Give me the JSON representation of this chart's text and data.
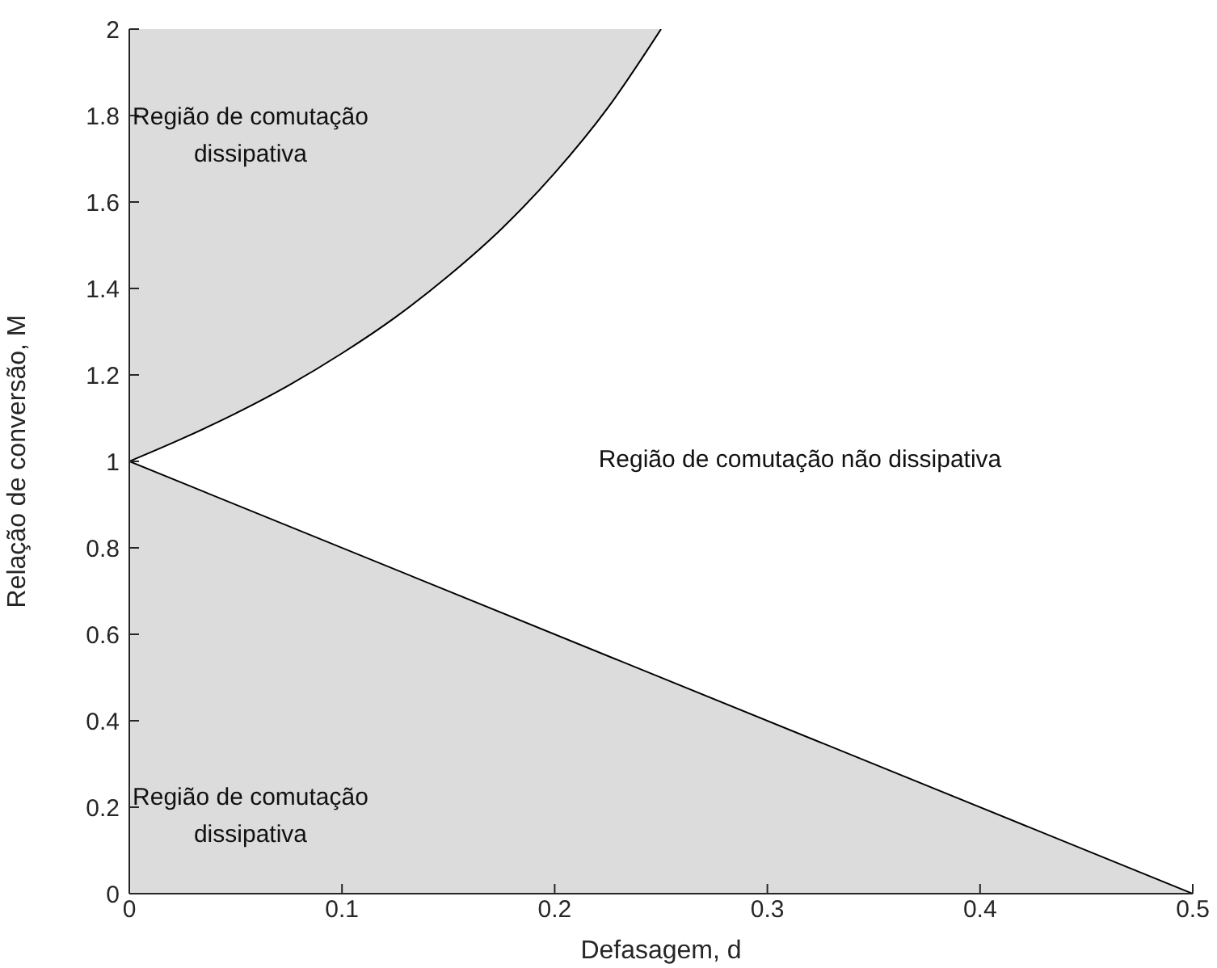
{
  "chart_data": {
    "type": "area",
    "xlabel": "Defasagem, d",
    "ylabel": "Relação de conversão, M",
    "xlim": [
      0,
      0.5
    ],
    "xticks": [
      0,
      0.1,
      0.2,
      0.3,
      0.4,
      0.5
    ],
    "ylim": [
      0,
      2
    ],
    "yticks": [
      0,
      0.2,
      0.4,
      0.6,
      0.8,
      1,
      1.2,
      1.4,
      1.6,
      1.8,
      2
    ],
    "grid": false,
    "series": [
      {
        "color": "#dcdcdc",
        "x": [
          0,
          0.5
        ],
        "values": [
          1,
          0
        ]
      },
      {
        "type": "line",
        "color": "#000000",
        "x": [
          0,
          0.025,
          0.05,
          0.075,
          0.1,
          0.125,
          0.15,
          0.175,
          0.2,
          0.225,
          0.25
        ],
        "values": [
          1,
          1.053,
          1.111,
          1.176,
          1.25,
          1.333,
          1.429,
          1.538,
          1.667,
          1.818,
          2
        ]
      }
    ],
    "annotations": [
      "Região de comutação dissipativa",
      "Região de comutação não dissipativa",
      "Região de comutação dissipativa"
    ]
  }
}
